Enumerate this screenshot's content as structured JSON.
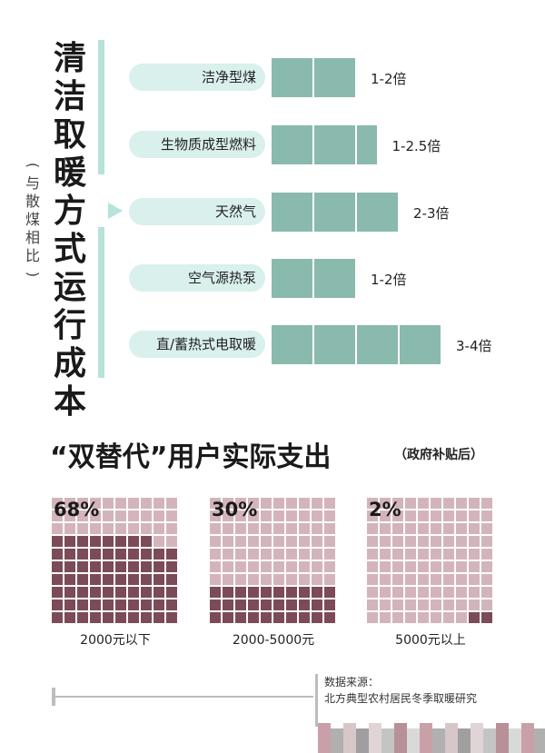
{
  "top_chart": {
    "title_chars": [
      "清",
      "洁",
      "取",
      "暖",
      "方",
      "式",
      "运",
      "行",
      "成",
      "本"
    ],
    "subtitle_chars": [
      "(",
      "与",
      "散",
      "煤",
      "相",
      "比",
      ")"
    ],
    "rows": [
      {
        "label": "洁净型煤",
        "value_text": "1-2倍",
        "blocks": 2
      },
      {
        "label": "生物质成型燃料",
        "value_text": "1-2.5倍",
        "blocks": 2.5
      },
      {
        "label": "天然气",
        "value_text": "2-3倍",
        "blocks": 3
      },
      {
        "label": "空气源热泵",
        "value_text": "1-2倍",
        "blocks": 2
      },
      {
        "label": "直/蓄热式电取暖",
        "value_text": "3-4倍",
        "blocks": 4
      }
    ],
    "highlighted_row": "天然气",
    "bar_color": "#8ab9ae",
    "pill_color": "#d9f0ec",
    "accent_color": "#b7e2da"
  },
  "bottom_chart": {
    "title": "“双替代”用户实际支出",
    "title_suffix": "（政府补贴后）",
    "grids": [
      {
        "percent_label": "68%",
        "percent": 68,
        "category": "2000元以下"
      },
      {
        "percent_label": "30%",
        "percent": 30,
        "category": "2000-5000元"
      },
      {
        "percent_label": "2%",
        "percent": 2,
        "category": "5000元以上"
      }
    ],
    "filled_color": "#7c4b59",
    "empty_color": "#d4b4bb"
  },
  "source": {
    "label": "数据来源：",
    "text": "北方典型农村居民冬季取暖研究"
  },
  "chart_data": [
    {
      "type": "bar",
      "title": "清洁取暖方式运行成本",
      "subtitle": "(与散煤相比)",
      "categories": [
        "洁净型煤",
        "生物质成型燃料",
        "天然气",
        "空气源热泵",
        "直/蓄热式电取暖"
      ],
      "series": [
        {
          "values_min": [
            1,
            1,
            2,
            1,
            3
          ],
          "values_max": [
            2,
            2.5,
            3,
            2,
            4
          ]
        }
      ],
      "value_labels": [
        "1-2倍",
        "1-2.5倍",
        "2-3倍",
        "1-2倍",
        "3-4倍"
      ]
    },
    {
      "type": "heatmap",
      "title": "“双替代”用户实际支出（政府补贴后）",
      "categories": [
        "2000元以下",
        "2000-5000元",
        "5000元以上"
      ],
      "values": [
        68,
        30,
        2
      ]
    }
  ]
}
